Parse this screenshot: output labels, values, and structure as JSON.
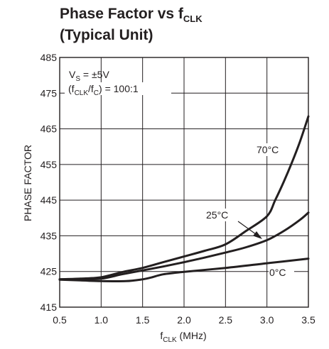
{
  "chart_data": {
    "type": "line",
    "title": {
      "line1_prefix": "Phase Factor vs f",
      "line1_sub": "CLK",
      "line2": "(Typical Unit)"
    },
    "xlabel": {
      "prefix": "f",
      "sub": "CLK",
      "suffix": " (MHz)"
    },
    "ylabel": "PHASE FACTOR",
    "xlim": [
      0.5,
      3.5
    ],
    "ylim": [
      415,
      485
    ],
    "x_ticks": [
      0.5,
      1.0,
      1.5,
      2.0,
      2.5,
      3.0,
      3.5
    ],
    "x_tick_labels": [
      "0.5",
      "1.0",
      "1.5",
      "2.0",
      "2.5",
      "3.0",
      "3.5"
    ],
    "y_ticks": [
      415,
      425,
      435,
      445,
      455,
      465,
      475,
      485
    ],
    "y_tick_labels": [
      "415",
      "425",
      "435",
      "445",
      "455",
      "465",
      "475",
      "485"
    ],
    "grid": true,
    "conditions": {
      "line1": {
        "pre": "V",
        "sub": "S",
        "post": " = ±5V"
      },
      "line2": {
        "pre": "(f",
        "sub1": "CLK",
        "mid": "/f",
        "sub2": "C",
        "post": ") = 100:1"
      }
    },
    "series": [
      {
        "name": "70°C",
        "x": [
          0.5,
          0.75,
          1.0,
          1.25,
          1.5,
          1.75,
          2.0,
          2.25,
          2.5,
          2.75,
          3.0,
          3.1,
          3.2,
          3.3,
          3.4,
          3.5
        ],
        "y": [
          422.8,
          423.0,
          423.4,
          424.8,
          426.0,
          427.6,
          429.2,
          430.8,
          432.6,
          436.4,
          440.5,
          445.0,
          450.0,
          455.5,
          461.5,
          468.5
        ]
      },
      {
        "name": "25°C",
        "x": [
          0.5,
          0.75,
          1.0,
          1.25,
          1.5,
          1.75,
          2.0,
          2.25,
          2.5,
          2.75,
          3.0,
          3.2,
          3.4,
          3.5
        ],
        "y": [
          422.8,
          422.9,
          423.0,
          424.2,
          425.3,
          426.4,
          427.6,
          428.9,
          430.3,
          431.8,
          433.8,
          436.3,
          439.5,
          441.5
        ]
      },
      {
        "name": "0°C",
        "x": [
          0.5,
          0.75,
          1.0,
          1.3,
          1.5,
          1.6,
          1.75,
          2.0,
          2.5,
          3.0,
          3.5
        ],
        "y": [
          422.7,
          422.5,
          422.3,
          422.3,
          422.8,
          423.3,
          424.2,
          424.9,
          426.0,
          427.3,
          428.6
        ]
      }
    ],
    "series_labels": [
      "70°C",
      "25°C",
      "0°C"
    ]
  }
}
